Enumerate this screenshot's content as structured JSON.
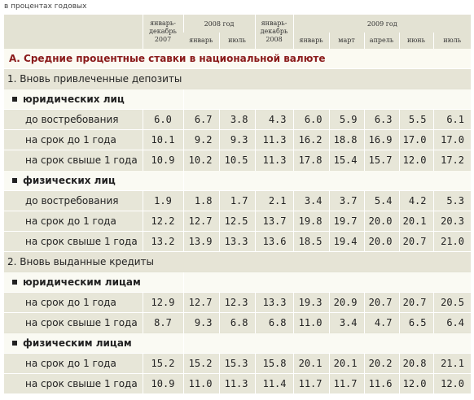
{
  "caption": "в процентах годовых",
  "header": {
    "group_2008": "2008 год",
    "group_2009": "2009 год",
    "col_2007": "январь-декабрь 2007",
    "col_2008_total": "январь-декабрь 2008",
    "months_2008": [
      "январь",
      "июль"
    ],
    "months_2009": [
      "январь",
      "март",
      "апрель",
      "июнь",
      "июль"
    ]
  },
  "section_a": "А. Средние процентные ставки в национальной валюте",
  "groups": [
    {
      "title": "1. Вновь привлеченные депозиты",
      "subgroups": [
        {
          "title": "юридических лиц",
          "rows": [
            {
              "label": "до востребования",
              "values": [
                "6.0",
                "6.7",
                "3.8",
                "4.3",
                "6.0",
                "5.9",
                "6.3",
                "5.5",
                "6.1"
              ]
            },
            {
              "label": "на срок до 1 года",
              "values": [
                "10.1",
                "9.2",
                "9.3",
                "11.3",
                "16.2",
                "18.8",
                "16.9",
                "17.0",
                "17.0"
              ]
            },
            {
              "label": "на срок свыше 1 года",
              "values": [
                "10.9",
                "10.2",
                "10.5",
                "11.3",
                "17.8",
                "15.4",
                "15.7",
                "12.0",
                "17.2"
              ]
            }
          ]
        },
        {
          "title": "физических лиц",
          "rows": [
            {
              "label": "до востребования",
              "values": [
                "1.9",
                "1.8",
                "1.7",
                "2.1",
                "3.4",
                "3.7",
                "5.4",
                "4.2",
                "5.3"
              ]
            },
            {
              "label": "на срок до 1 года",
              "values": [
                "12.2",
                "12.7",
                "12.5",
                "13.7",
                "19.8",
                "19.7",
                "20.0",
                "20.1",
                "20.3"
              ]
            },
            {
              "label": "на срок свыше 1 года",
              "values": [
                "13.2",
                "13.9",
                "13.3",
                "13.6",
                "18.5",
                "19.4",
                "20.0",
                "20.7",
                "21.0"
              ]
            }
          ]
        }
      ]
    },
    {
      "title": "2. Вновь выданные кредиты",
      "subgroups": [
        {
          "title": "юридическим лицам",
          "rows": [
            {
              "label": "на срок до 1 года",
              "values": [
                "12.9",
                "12.7",
                "12.3",
                "13.3",
                "19.3",
                "20.9",
                "20.7",
                "20.7",
                "20.5"
              ]
            },
            {
              "label": "на срок свыше 1 года",
              "values": [
                "8.7",
                "9.3",
                "6.8",
                "6.8",
                "11.0",
                "3.4",
                "4.7",
                "6.5",
                "6.4"
              ]
            }
          ]
        },
        {
          "title": "физическим лицам",
          "rows": [
            {
              "label": "на срок до 1 года",
              "values": [
                "15.2",
                "15.2",
                "15.3",
                "15.8",
                "20.1",
                "20.1",
                "20.2",
                "20.8",
                "21.1"
              ]
            },
            {
              "label": "на срок свыше 1 года",
              "values": [
                "10.9",
                "11.0",
                "11.3",
                "11.4",
                "11.7",
                "11.7",
                "11.6",
                "12.0",
                "12.0"
              ]
            }
          ]
        }
      ]
    }
  ]
}
